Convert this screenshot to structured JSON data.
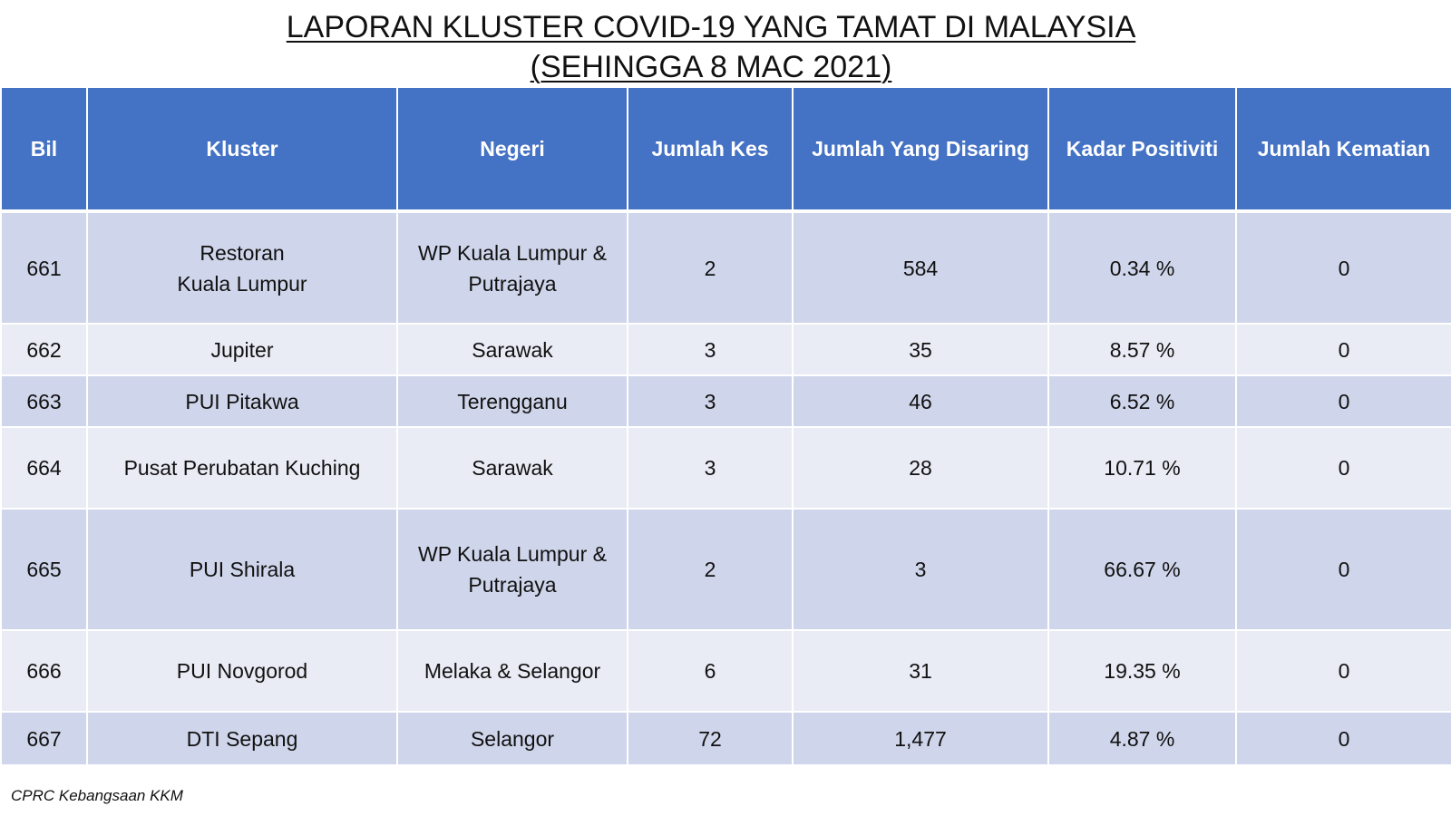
{
  "title": {
    "line1": "LAPORAN KLUSTER COVID-19 YANG TAMAT DI MALAYSIA",
    "line2": "(SEHINGGA 8 MAC 2021)"
  },
  "table": {
    "headers": [
      "Bil",
      "Kluster",
      "Negeri",
      "Jumlah Kes",
      "Jumlah Yang Disaring",
      "Kadar Positiviti",
      "Jumlah Kematian"
    ],
    "rows": [
      [
        "661",
        "Restoran\nKuala Lumpur",
        "WP Kuala Lumpur &\nPutrajaya",
        "2",
        "584",
        "0.34 %",
        "0"
      ],
      [
        "662",
        "Jupiter",
        "Sarawak",
        "3",
        "35",
        "8.57 %",
        "0"
      ],
      [
        "663",
        "PUI Pitakwa",
        "Terengganu",
        "3",
        "46",
        "6.52 %",
        "0"
      ],
      [
        "664",
        "Pusat Perubatan Kuching",
        "Sarawak",
        "3",
        "28",
        "10.71 %",
        "0"
      ],
      [
        "665",
        "PUI Shirala",
        "WP Kuala Lumpur &\nPutrajaya",
        "2",
        "3",
        "66.67 %",
        "0"
      ],
      [
        "666",
        "PUI Novgorod",
        "Melaka & Selangor",
        "6",
        "31",
        "19.35 %",
        "0"
      ],
      [
        "667",
        "DTI Sepang",
        "Selangor",
        "72",
        "1,477",
        "4.87 %",
        "0"
      ]
    ]
  },
  "source": "CPRC Kebangsaan KKM",
  "colors": {
    "header_bg": "#4472c4",
    "row_dark": "#cfd5ea",
    "row_light": "#e9ebf5"
  }
}
